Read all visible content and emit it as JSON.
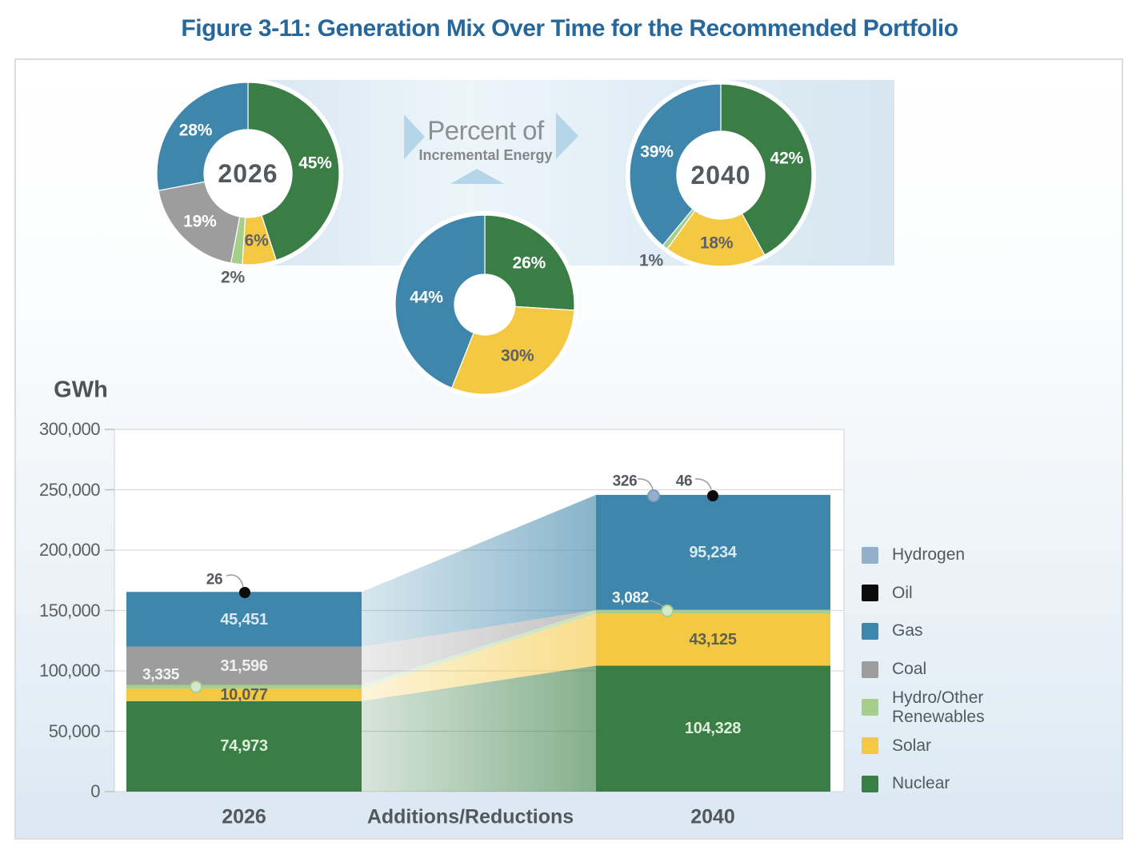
{
  "title": "Figure 3-11: Generation Mix Over Time for the Recommended Portfolio",
  "colors": {
    "Hydrogen": "#92AFCC",
    "Oil": "#0B0B0B",
    "Gas": "#3E86AB",
    "Coal": "#9D9D9D",
    "Hydro/Other Renewables": "#A6CE8C",
    "Solar": "#F5C843",
    "Nuclear": "#3A7E46",
    "title_blue": "#26689C",
    "band_blue": "#D9E8F2",
    "arrow_blue": "#B5D6E8"
  },
  "chart_data": [
    {
      "type": "donut",
      "id": "y2026",
      "center_label": "2026",
      "segments": [
        {
          "series": "Nuclear",
          "pct": 45,
          "label": "45%",
          "label_color": "#FFFFFF"
        },
        {
          "series": "Solar",
          "pct": 6,
          "label": "6%",
          "label_color": "#5E6266"
        },
        {
          "series": "Hydro/Other Renewables",
          "pct": 2,
          "label": "2%",
          "label_color": "#5E6266",
          "label_outside": true
        },
        {
          "series": "Coal",
          "pct": 19,
          "label": "19%",
          "label_color": "#FFFFFF"
        },
        {
          "series": "Gas",
          "pct": 28,
          "label": "28%",
          "label_color": "#FFFFFF"
        }
      ]
    },
    {
      "type": "donut",
      "id": "incremental",
      "title": "Percent of",
      "subtitle": "Incremental Energy",
      "center_label": "",
      "segments": [
        {
          "series": "Nuclear",
          "pct": 26,
          "label": "26%",
          "label_color": "#FFFFFF"
        },
        {
          "series": "Solar",
          "pct": 30,
          "label": "30%",
          "label_color": "#5E6266"
        },
        {
          "series": "Gas",
          "pct": 44,
          "label": "44%",
          "label_color": "#FFFFFF"
        }
      ]
    },
    {
      "type": "donut",
      "id": "y2040",
      "center_label": "2040",
      "segments": [
        {
          "series": "Nuclear",
          "pct": 42,
          "label": "42%",
          "label_color": "#FFFFFF"
        },
        {
          "series": "Solar",
          "pct": 18,
          "label": "18%",
          "label_color": "#5E6266"
        },
        {
          "series": "Hydro/Other Renewables",
          "pct": 1,
          "label": "1%",
          "label_color": "#5E6266",
          "label_outside": true
        },
        {
          "series": "Gas",
          "pct": 39,
          "label": "39%",
          "label_color": "#FFFFFF"
        }
      ]
    },
    {
      "type": "stacked-bar-transition",
      "ylabel": "GWh",
      "ylim": [
        0,
        300000
      ],
      "yticks": [
        {
          "value": 300000,
          "label": "300,000"
        },
        {
          "value": 250000,
          "label": "250,000"
        },
        {
          "value": 200000,
          "label": "200,000"
        },
        {
          "value": 150000,
          "label": "150,000"
        },
        {
          "value": 100000,
          "label": "100,000"
        },
        {
          "value": 50000,
          "label": "50,000"
        },
        {
          "value": 0,
          "label": "0"
        }
      ],
      "categories": [
        "2026",
        "Additions/Reductions",
        "2040"
      ],
      "stack_order_bottom_up": [
        "Nuclear",
        "Solar",
        "Hydro/Other Renewables",
        "Coal",
        "Gas",
        "Hydrogen",
        "Oil"
      ],
      "bars": [
        {
          "category": "2026",
          "values": {
            "Nuclear": 74973,
            "Solar": 10077,
            "Hydro/Other Renewables": 3335,
            "Coal": 31596,
            "Gas": 45451,
            "Hydrogen": 0,
            "Oil": 26
          },
          "segment_labels": [
            {
              "series": "Gas",
              "text": "45,451",
              "text_color": "#D8EAF3"
            },
            {
              "series": "Coal",
              "text": "31,596",
              "text_color": "#EFEFEF"
            },
            {
              "series": "Solar",
              "text": "10,077",
              "text_color": "#5E6050"
            },
            {
              "series": "Nuclear",
              "text": "74,973",
              "text_color": "#DDEEDB"
            }
          ],
          "callouts": [
            {
              "series": "Oil",
              "text": "26"
            },
            {
              "series": "Hydro/Other Renewables",
              "text": "3,335"
            }
          ]
        },
        {
          "category": "2040",
          "values": {
            "Nuclear": 104328,
            "Solar": 43125,
            "Hydro/Other Renewables": 3082,
            "Coal": 0,
            "Gas": 95234,
            "Hydrogen": 326,
            "Oil": 46
          },
          "segment_labels": [
            {
              "series": "Gas",
              "text": "95,234",
              "text_color": "#D8EAF3"
            },
            {
              "series": "Solar",
              "text": "43,125",
              "text_color": "#5E6050"
            },
            {
              "series": "Nuclear",
              "text": "104,328",
              "text_color": "#DDEEDB"
            }
          ],
          "callouts": [
            {
              "series": "Hydrogen",
              "text": "326"
            },
            {
              "series": "Oil",
              "text": "46"
            },
            {
              "series": "Hydro/Other Renewables",
              "text": "3,082"
            }
          ]
        }
      ]
    }
  ],
  "legend": {
    "items": [
      {
        "label": "Hydrogen",
        "series": "Hydrogen"
      },
      {
        "label": "Oil",
        "series": "Oil"
      },
      {
        "label": "Gas",
        "series": "Gas"
      },
      {
        "label": "Coal",
        "series": "Coal"
      },
      {
        "label": "Hydro/Other Renewables",
        "series": "Hydro/Other Renewables"
      },
      {
        "label": "Solar",
        "series": "Solar"
      },
      {
        "label": "Nuclear",
        "series": "Nuclear"
      }
    ]
  }
}
